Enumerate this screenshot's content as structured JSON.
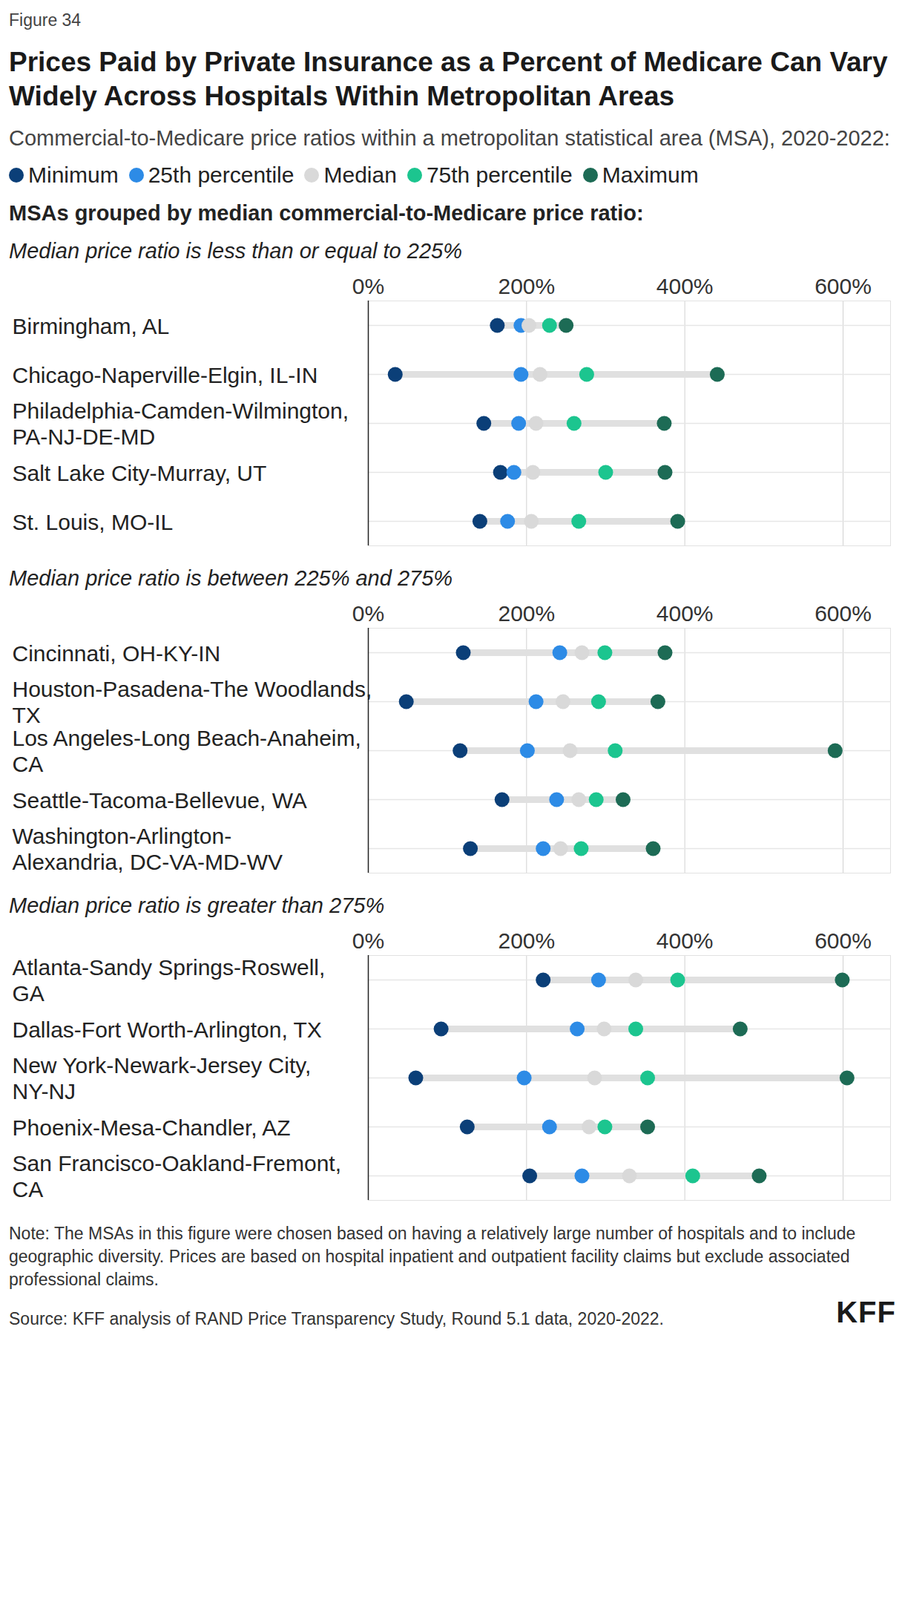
{
  "figure_label": "Figure 34",
  "title": "Prices Paid by Private Insurance as a Percent of Medicare Can Vary Widely Across Hospitals Within Metropolitan Areas",
  "subtitle": "Commercial-to-Medicare price ratios within a metropolitan statistical area (MSA), 2020-2022:",
  "group_heading": "MSAs grouped by median commercial-to-Medicare price ratio:",
  "note": "Note: The MSAs in this figure were chosen based on having a relatively large number of hospitals and to include geographic diversity. Prices are based on hospital inpatient and outpatient facility claims but exclude associated professional claims.",
  "source": "Source: KFF analysis of RAND Price Transparency Study, Round 5.1 data, 2020-2022.",
  "logo": "KFF",
  "chart_data": [
    {
      "type": "dot",
      "orientation": "horizontal",
      "grid": true,
      "legend": "top",
      "title": "Median price ratio is less than or equal to 225%",
      "categories": [
        "Birmingham, AL",
        "Chicago-Naperville-Elgin, IL-IN",
        "Philadelphia-Camden-Wilmington, PA-NJ-DE-MD",
        "Salt Lake City-Murray, UT",
        "St. Louis, MO-IL"
      ],
      "series": [
        {
          "name": "Minimum",
          "color": "#0b3f78",
          "values": [
            163,
            34,
            146,
            167,
            141
          ]
        },
        {
          "name": "25th percentile",
          "color": "#2d8be6",
          "values": [
            193,
            193,
            190,
            184,
            176
          ]
        },
        {
          "name": "Median",
          "color": "#d9d9d9",
          "values": [
            203,
            217,
            212,
            208,
            206
          ]
        },
        {
          "name": "75th percentile",
          "color": "#1cc58f",
          "values": [
            229,
            276,
            260,
            300,
            266
          ]
        },
        {
          "name": "Maximum",
          "color": "#1d6b55",
          "values": [
            250,
            441,
            374,
            375,
            391
          ]
        }
      ],
      "xlim": [
        0,
        660
      ],
      "xticks": [
        {
          "value": 0,
          "label": "0%"
        },
        {
          "value": 200,
          "label": "200%"
        },
        {
          "value": 400,
          "label": "400%"
        },
        {
          "value": 600,
          "label": "600%"
        }
      ]
    },
    {
      "type": "dot",
      "orientation": "horizontal",
      "grid": true,
      "title": "Median price ratio is between 225% and 275%",
      "categories": [
        "Cincinnati, OH-KY-IN",
        "Houston-Pasadena-The Woodlands, TX",
        "Los Angeles-Long Beach-Anaheim, CA",
        "Seattle-Tacoma-Bellevue, WA",
        "Washington-Arlington-Alexandria, DC-VA-MD-WV"
      ],
      "series": [
        {
          "name": "Minimum",
          "color": "#0b3f78",
          "values": [
            120,
            48,
            116,
            169,
            129
          ]
        },
        {
          "name": "25th percentile",
          "color": "#2d8be6",
          "values": [
            242,
            212,
            201,
            238,
            221
          ]
        },
        {
          "name": "Median",
          "color": "#d9d9d9",
          "values": [
            270,
            246,
            255,
            266,
            243
          ]
        },
        {
          "name": "75th percentile",
          "color": "#1cc58f",
          "values": [
            299,
            291,
            312,
            288,
            269
          ]
        },
        {
          "name": "Maximum",
          "color": "#1d6b55",
          "values": [
            375,
            366,
            590,
            322,
            360
          ]
        }
      ],
      "xlim": [
        0,
        660
      ],
      "xticks": [
        {
          "value": 0,
          "label": "0%"
        },
        {
          "value": 200,
          "label": "200%"
        },
        {
          "value": 400,
          "label": "400%"
        },
        {
          "value": 600,
          "label": "600%"
        }
      ]
    },
    {
      "type": "dot",
      "orientation": "horizontal",
      "grid": true,
      "title": "Median price ratio is greater than 275%",
      "categories": [
        "Atlanta-Sandy Springs-Roswell, GA",
        "Dallas-Fort Worth-Arlington, TX",
        "New York-Newark-Jersey City, NY-NJ",
        "Phoenix-Mesa-Chandler, AZ",
        "San Francisco-Oakland-Fremont, CA"
      ],
      "series": [
        {
          "name": "Minimum",
          "color": "#0b3f78",
          "values": [
            221,
            92,
            60,
            125,
            204
          ]
        },
        {
          "name": "25th percentile",
          "color": "#2d8be6",
          "values": [
            291,
            264,
            197,
            229,
            270
          ]
        },
        {
          "name": "Median",
          "color": "#d9d9d9",
          "values": [
            338,
            298,
            286,
            279,
            330
          ]
        },
        {
          "name": "75th percentile",
          "color": "#1cc58f",
          "values": [
            391,
            338,
            353,
            299,
            410
          ]
        },
        {
          "name": "Maximum",
          "color": "#1d6b55",
          "values": [
            599,
            470,
            605,
            353,
            494
          ]
        }
      ],
      "xlim": [
        0,
        660
      ],
      "xticks": [
        {
          "value": 0,
          "label": "0%"
        },
        {
          "value": 200,
          "label": "200%"
        },
        {
          "value": 400,
          "label": "400%"
        },
        {
          "value": 600,
          "label": "600%"
        }
      ]
    }
  ]
}
